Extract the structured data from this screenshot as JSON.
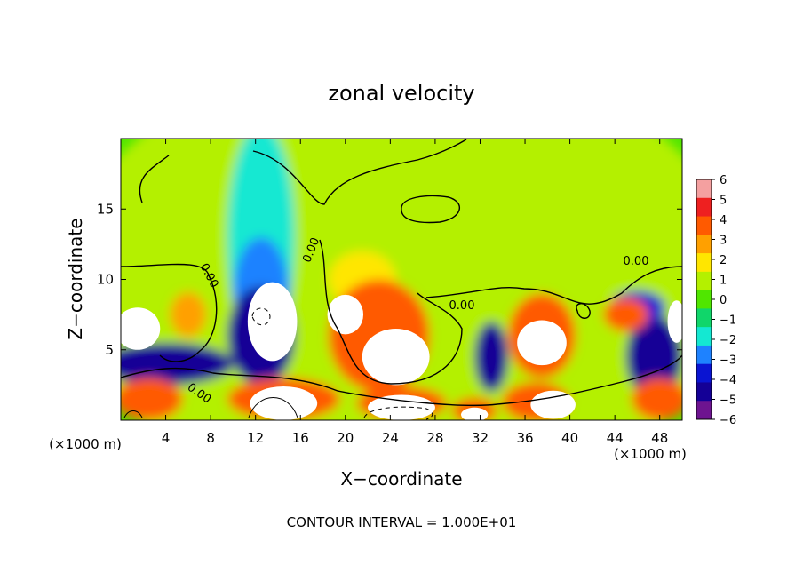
{
  "chart_data": {
    "type": "heatmap",
    "title": "zonal velocity",
    "xlabel": "X−coordinate",
    "ylabel": "Z−coordinate",
    "x_unit_label": "(×1000 m)",
    "x_unit_label_right": "(×1000 m)",
    "xlim": [
      0,
      50
    ],
    "ylim": [
      0,
      20
    ],
    "x_ticks": [
      "4",
      "8",
      "12",
      "16",
      "20",
      "24",
      "28",
      "32",
      "36",
      "40",
      "44",
      "48"
    ],
    "y_ticks": [
      "5",
      "10",
      "15"
    ],
    "colorbar": {
      "min": -6,
      "max": 6,
      "ticks": [
        "6",
        "5",
        "4",
        "3",
        "2",
        "1",
        "0",
        "−1",
        "−2",
        "−3",
        "−4",
        "−5",
        "−6"
      ],
      "colors": [
        "#f4a0a0",
        "#ee2020",
        "#ff5a00",
        "#ffa000",
        "#ffe600",
        "#b4f000",
        "#50e600",
        "#10d66a",
        "#14e8d2",
        "#1e82ff",
        "#0a14d2",
        "#140096",
        "#6e1490"
      ]
    },
    "contour_label": "0.00",
    "footer": "CONTOUR INTERVAL = 1.000E+01",
    "regions": [
      {
        "value": 0.8,
        "kind": "ellipse",
        "cx": 25,
        "cy": 10,
        "rx": 30,
        "ry": 16
      },
      {
        "value": -1.8,
        "kind": "ellipse",
        "cx": 12.5,
        "cy": 13,
        "rx": 3,
        "ry": 8
      },
      {
        "value": -2.8,
        "kind": "ellipse",
        "cx": 12.5,
        "cy": 9,
        "rx": 2.5,
        "ry": 4
      },
      {
        "value": -4.5,
        "kind": "ellipse",
        "cx": 12.5,
        "cy": 6,
        "rx": 3,
        "ry": 3.5
      },
      {
        "value": -4.5,
        "kind": "ellipse",
        "cx": 4,
        "cy": 4,
        "rx": 6,
        "ry": 1.5
      },
      {
        "value": -4.5,
        "kind": "ellipse",
        "cx": 33,
        "cy": 4.5,
        "rx": 1.5,
        "ry": 2.5
      },
      {
        "value": -4.5,
        "kind": "ellipse",
        "cx": 47.5,
        "cy": 4.5,
        "rx": 2.5,
        "ry": 3
      },
      {
        "value": -3.5,
        "kind": "ellipse",
        "cx": 46,
        "cy": 8,
        "rx": 2.5,
        "ry": 1.2
      },
      {
        "value": 2.0,
        "kind": "ellipse",
        "cx": 21.5,
        "cy": 10,
        "rx": 3,
        "ry": 2
      },
      {
        "value": 4.5,
        "kind": "ellipse",
        "cx": 23,
        "cy": 6,
        "rx": 4.5,
        "ry": 4
      },
      {
        "value": 4.5,
        "kind": "ellipse",
        "cx": 37.5,
        "cy": 6,
        "rx": 3,
        "ry": 3
      },
      {
        "value": 3.5,
        "kind": "ellipse",
        "cx": 6,
        "cy": 7.5,
        "rx": 1.6,
        "ry": 1.6
      },
      {
        "value": 4.0,
        "kind": "ellipse",
        "cx": 45,
        "cy": 7.5,
        "rx": 2,
        "ry": 1.2
      },
      {
        "value": 4.5,
        "kind": "ellipse",
        "cx": 2.5,
        "cy": 1.5,
        "rx": 3,
        "ry": 1.5
      },
      {
        "value": 4.5,
        "kind": "ellipse",
        "cx": 14.5,
        "cy": 1.5,
        "rx": 5,
        "ry": 1.5
      },
      {
        "value": 4.5,
        "kind": "ellipse",
        "cx": 25,
        "cy": 1.2,
        "rx": 4,
        "ry": 1.2
      },
      {
        "value": 4.5,
        "kind": "ellipse",
        "cx": 31.5,
        "cy": 0.7,
        "rx": 2,
        "ry": 0.9
      },
      {
        "value": 4.5,
        "kind": "ellipse",
        "cx": 37,
        "cy": 1.3,
        "rx": 3,
        "ry": 1.4
      },
      {
        "value": 4.0,
        "kind": "ellipse",
        "cx": 48,
        "cy": 1.5,
        "rx": 2.5,
        "ry": 1.5
      },
      {
        "value": 9,
        "kind": "ellipse",
        "cx": 13.5,
        "cy": 7,
        "rx": 2.2,
        "ry": 2.8
      },
      {
        "value": 9,
        "kind": "ellipse",
        "cx": 24.5,
        "cy": 4.5,
        "rx": 3,
        "ry": 2
      },
      {
        "value": 9,
        "kind": "ellipse",
        "cx": 20,
        "cy": 7.5,
        "rx": 1.6,
        "ry": 1.4
      },
      {
        "value": 9,
        "kind": "ellipse",
        "cx": 37.5,
        "cy": 5.5,
        "rx": 2.2,
        "ry": 1.6
      },
      {
        "value": 9,
        "kind": "ellipse",
        "cx": 1.5,
        "cy": 6.5,
        "rx": 2,
        "ry": 1.5
      },
      {
        "value": 9,
        "kind": "ellipse",
        "cx": 49.5,
        "cy": 7,
        "rx": 0.8,
        "ry": 1.5
      },
      {
        "value": 9,
        "kind": "ellipse",
        "cx": 14.5,
        "cy": 1.2,
        "rx": 3,
        "ry": 1.2
      },
      {
        "value": 9,
        "kind": "ellipse",
        "cx": 25,
        "cy": 0.9,
        "rx": 3,
        "ry": 0.9
      },
      {
        "value": 9,
        "kind": "ellipse",
        "cx": 38.5,
        "cy": 1.1,
        "rx": 2,
        "ry": 1
      },
      {
        "value": 9,
        "kind": "ellipse",
        "cx": 31.5,
        "cy": 0.4,
        "rx": 1.2,
        "ry": 0.5
      }
    ]
  }
}
